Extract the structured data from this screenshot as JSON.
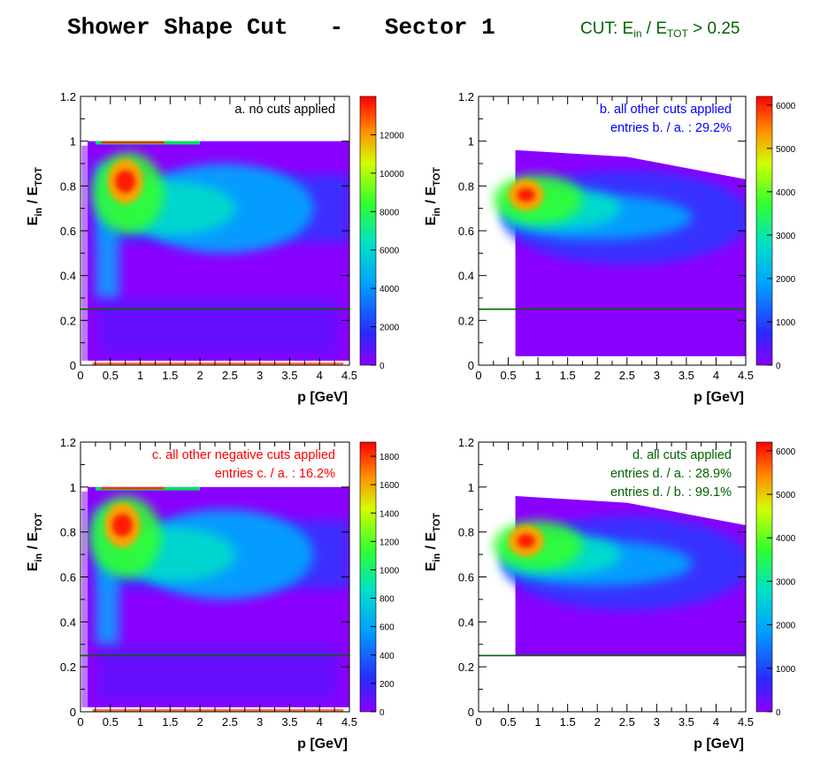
{
  "page": {
    "title": "Shower Shape Cut   -   Sector 1",
    "cut": {
      "prefix": "CUT:  E",
      "sub1": "in",
      "mid": " / E",
      "sub2": "TOT",
      "suffix": " > 0.25"
    }
  },
  "colors": {
    "cut_line": "#006400",
    "label_a": "#000000",
    "label_b": "#0000ff",
    "label_c": "#ff0000",
    "label_d": "#006400"
  },
  "chart_data": [
    {
      "type": "heatmap",
      "panel": "a",
      "xlabel": "p  [GeV]",
      "ylabel": {
        "main": "E",
        "sub1": "in",
        "mid": " / E",
        "sub2": "TOT"
      },
      "xlim": [
        0,
        4.5
      ],
      "ylim": [
        0,
        1.2
      ],
      "xticks": [
        "0",
        "0.5",
        "1",
        "1.5",
        "2",
        "2.5",
        "3",
        "3.5",
        "4",
        "4.5"
      ],
      "yticks": [
        "0",
        "0.2",
        "0.4",
        "0.6",
        "0.8",
        "1",
        "1.2"
      ],
      "cut_value": 0.25,
      "zmax": 14000,
      "zticks": [
        "0",
        "2000",
        "4000",
        "6000",
        "8000",
        "10000",
        "12000"
      ],
      "ztick_values": [
        0,
        2000,
        4000,
        6000,
        8000,
        10000,
        12000
      ],
      "annotations": [
        "a. no cuts applied"
      ],
      "peak": {
        "x": 0.75,
        "y": 0.82
      }
    },
    {
      "type": "heatmap",
      "panel": "b",
      "xlabel": "p  [GeV]",
      "ylabel": {
        "main": "E",
        "sub1": "in",
        "mid": " / E",
        "sub2": "TOT"
      },
      "xlim": [
        0,
        4.5
      ],
      "ylim": [
        0,
        1.2
      ],
      "xticks": [
        "0",
        "0.5",
        "1",
        "1.5",
        "2",
        "2.5",
        "3",
        "3.5",
        "4",
        "4.5"
      ],
      "yticks": [
        "0",
        "0.2",
        "0.4",
        "0.6",
        "0.8",
        "1",
        "1.2"
      ],
      "cut_value": 0.25,
      "p_min": 0.62,
      "zmax": 6200,
      "zticks": [
        "0",
        "1000",
        "2000",
        "3000",
        "4000",
        "5000",
        "6000"
      ],
      "ztick_values": [
        0,
        1000,
        2000,
        3000,
        4000,
        5000,
        6000
      ],
      "annotations": [
        "b. all other cuts applied",
        "entries b. / a. : 29.2%"
      ],
      "peak": {
        "x": 0.8,
        "y": 0.76
      }
    },
    {
      "type": "heatmap",
      "panel": "c",
      "xlabel": "p  [GeV]",
      "ylabel": {
        "main": "E",
        "sub1": "in",
        "mid": " / E",
        "sub2": "TOT"
      },
      "xlim": [
        0,
        4.5
      ],
      "ylim": [
        0,
        1.2
      ],
      "xticks": [
        "0",
        "0.5",
        "1",
        "1.5",
        "2",
        "2.5",
        "3",
        "3.5",
        "4",
        "4.5"
      ],
      "yticks": [
        "0",
        "0.2",
        "0.4",
        "0.6",
        "0.8",
        "1",
        "1.2"
      ],
      "cut_value": 0.25,
      "zmax": 1900,
      "zticks": [
        "0",
        "200",
        "400",
        "600",
        "800",
        "1000",
        "1200",
        "1400",
        "1600",
        "1800"
      ],
      "ztick_values": [
        0,
        200,
        400,
        600,
        800,
        1000,
        1200,
        1400,
        1600,
        1800
      ],
      "annotations": [
        "c. all other negative cuts applied",
        "entries c. / a. : 16.2%"
      ],
      "peak": {
        "x": 0.7,
        "y": 0.83
      }
    },
    {
      "type": "heatmap",
      "panel": "d",
      "xlabel": "p  [GeV]",
      "ylabel": {
        "main": "E",
        "sub1": "in",
        "mid": " / E",
        "sub2": "TOT"
      },
      "xlim": [
        0,
        4.5
      ],
      "ylim": [
        0,
        1.2
      ],
      "xticks": [
        "0",
        "0.5",
        "1",
        "1.5",
        "2",
        "2.5",
        "3",
        "3.5",
        "4",
        "4.5"
      ],
      "yticks": [
        "0",
        "0.2",
        "0.4",
        "0.6",
        "0.8",
        "1",
        "1.2"
      ],
      "cut_value": 0.25,
      "p_min": 0.62,
      "zmax": 6200,
      "zticks": [
        "0",
        "1000",
        "2000",
        "3000",
        "4000",
        "5000",
        "6000"
      ],
      "ztick_values": [
        0,
        1000,
        2000,
        3000,
        4000,
        5000,
        6000
      ],
      "annotations": [
        "d. all cuts applied",
        "entries d. / a. : 28.9%",
        "entries d. / b. : 99.1%"
      ],
      "peak": {
        "x": 0.8,
        "y": 0.76
      }
    }
  ]
}
